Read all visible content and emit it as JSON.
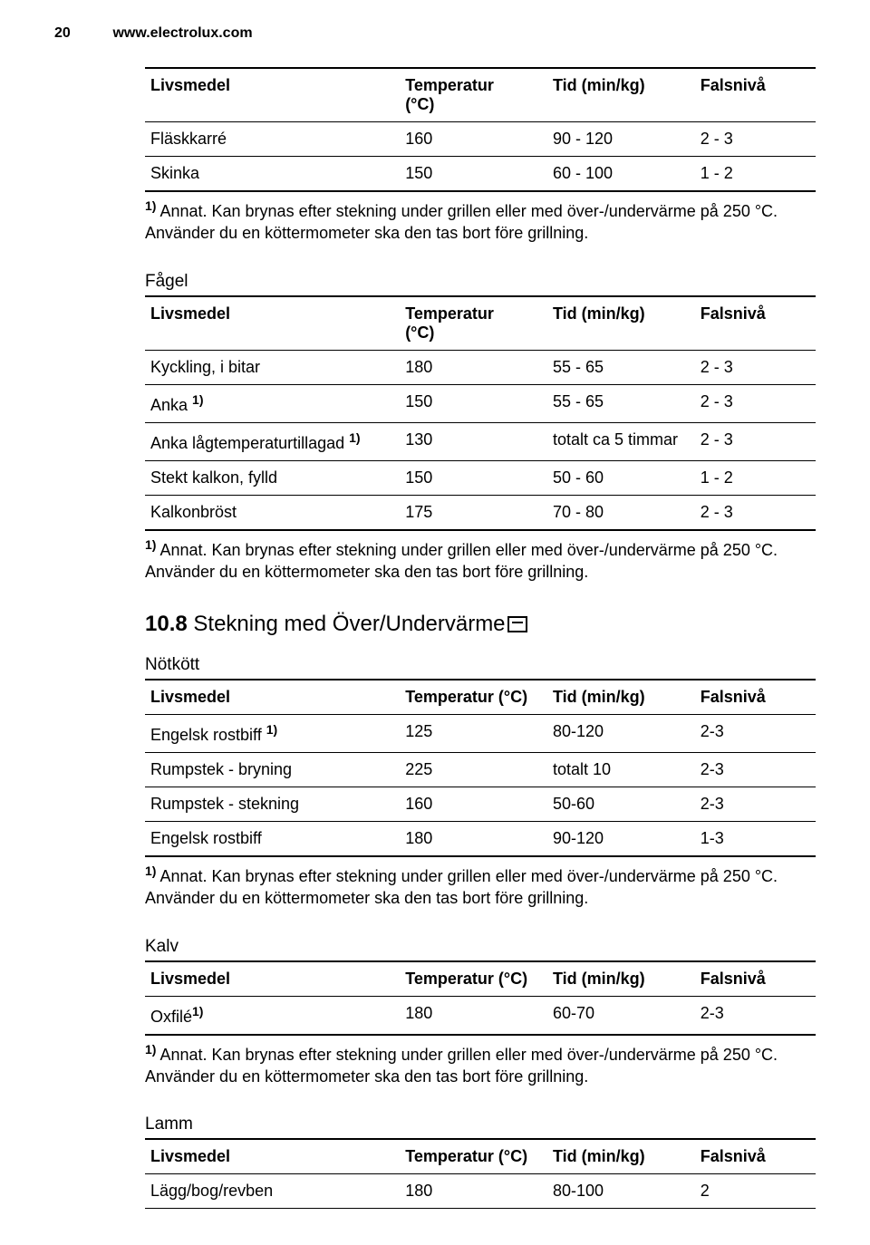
{
  "page_number": "20",
  "site": "www.electrolux.com",
  "footnote_text": "Annat. Kan brynas efter stekning under grillen eller med över-/undervärme på 250 °C. Använder du en köttermometer ska den tas bort före grillning.",
  "footnote_marker": "1)",
  "col_labels": {
    "food": "Livsmedel",
    "temp_2line_1": "Temperatur",
    "temp_2line_2": "(°C)",
    "temp_1line": "Temperatur (°C)",
    "time": "Tid (min/kg)",
    "level": "Falsnivå"
  },
  "table1_rows": [
    {
      "food": "Fläskkarré",
      "sup": "",
      "temp": "160",
      "time": "90 - 120",
      "level": "2 - 3"
    },
    {
      "food": "Skinka",
      "sup": "",
      "temp": "150",
      "time": "60 - 100",
      "level": "1 - 2"
    }
  ],
  "fagel_heading": "Fågel",
  "table2_rows": [
    {
      "food": "Kyckling, i bitar",
      "sup": "",
      "temp": "180",
      "time": "55 - 65",
      "level": "2 - 3"
    },
    {
      "food": "Anka ",
      "sup": "1)",
      "temp": "150",
      "time": "55 - 65",
      "level": "2 - 3"
    },
    {
      "food": "Anka lågtemperaturtillagad ",
      "sup": "1)",
      "temp": "130",
      "time": "totalt ca 5 timmar",
      "level": "2 - 3"
    },
    {
      "food": "Stekt kalkon, fylld",
      "sup": "",
      "temp": "150",
      "time": "50 - 60",
      "level": "1 - 2"
    },
    {
      "food": "Kalkonbröst",
      "sup": "",
      "temp": "175",
      "time": "70 - 80",
      "level": "2 - 3"
    }
  ],
  "section_10_8_num": "10.8",
  "section_10_8_title": " Stekning med Över/Undervärme",
  "notkott_heading": "Nötkött",
  "table3_rows": [
    {
      "food": "Engelsk rostbiff ",
      "sup": "1)",
      "temp": "125",
      "time": "80-120",
      "level": "2-3"
    },
    {
      "food": "Rumpstek - bryning",
      "sup": "",
      "temp": "225",
      "time": "totalt 10",
      "level": "2-3"
    },
    {
      "food": "Rumpstek - stekning",
      "sup": "",
      "temp": "160",
      "time": "50-60",
      "level": "2-3"
    },
    {
      "food": "Engelsk rostbiff",
      "sup": "",
      "temp": "180",
      "time": "90-120",
      "level": "1-3"
    }
  ],
  "kalv_heading": "Kalv",
  "table4_rows": [
    {
      "food": "Oxfilé",
      "sup": "1)",
      "temp": "180",
      "time": "60-70",
      "level": "2-3"
    }
  ],
  "lamm_heading": "Lamm",
  "table5_rows": [
    {
      "food": "Lägg/bog/revben",
      "sup": "",
      "temp": "180",
      "time": "80-100",
      "level": "2"
    }
  ],
  "colors": {
    "text": "#000000",
    "bg": "#ffffff",
    "rule": "#000000"
  }
}
